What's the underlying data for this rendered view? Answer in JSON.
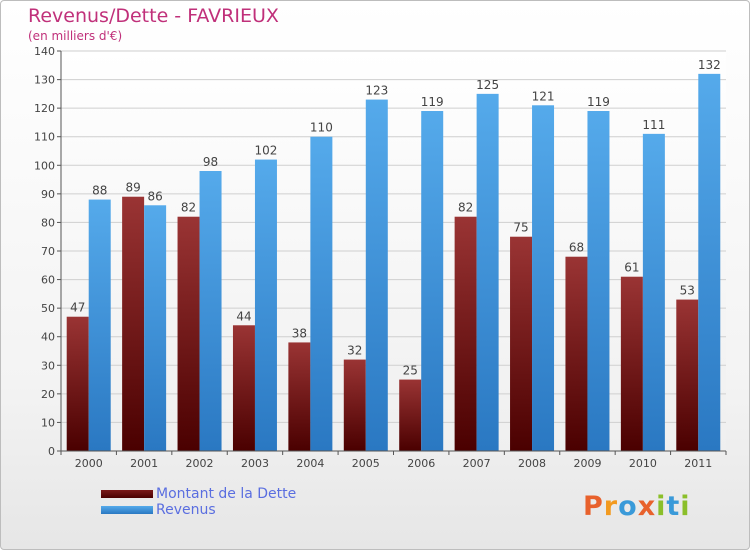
{
  "title": "Revenus/Dette - FAVRIEUX",
  "subtitle": "(en milliers d'€)",
  "brand_logo": "Proxiti",
  "chart_data": {
    "type": "bar",
    "categories": [
      "2000",
      "2001",
      "2002",
      "2003",
      "2004",
      "2005",
      "2006",
      "2007",
      "2008",
      "2009",
      "2010",
      "2011"
    ],
    "series": [
      {
        "name": "Montant de la Dette",
        "values": [
          47,
          89,
          82,
          44,
          38,
          32,
          25,
          82,
          75,
          68,
          61,
          53
        ],
        "color": "#8b2a2a"
      },
      {
        "name": "Revenus",
        "values": [
          88,
          86,
          98,
          102,
          110,
          123,
          119,
          125,
          121,
          119,
          111,
          132
        ],
        "color": "#4a9fdf"
      }
    ],
    "ylim": [
      0,
      140
    ],
    "yticks": [
      0,
      10,
      20,
      30,
      40,
      50,
      60,
      70,
      80,
      90,
      100,
      110,
      120,
      130,
      140
    ],
    "grid": true,
    "legend_position": "bottom-left",
    "data_labels": true
  }
}
